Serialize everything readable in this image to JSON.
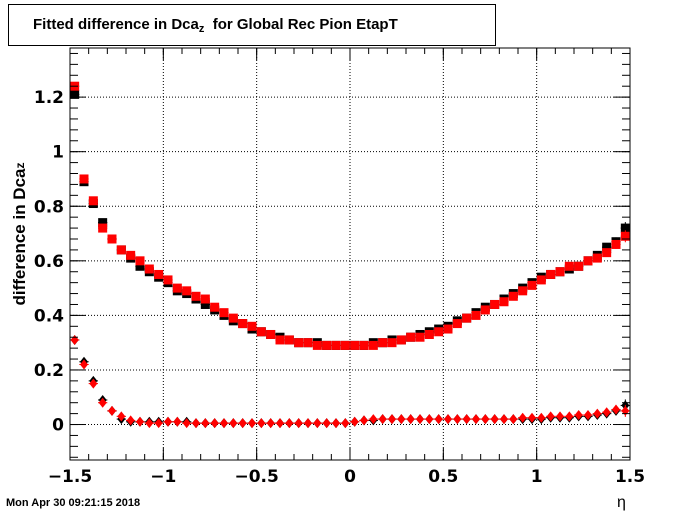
{
  "title": {
    "main": "Fitted difference in Dca",
    "sub": "z",
    "tail": "for Global Rec Pion EtapT"
  },
  "xlabel": "η",
  "ylabel": {
    "main": "difference in Dca",
    "sub": "z"
  },
  "timestamp": "Mon Apr 30 09:21:15 2018",
  "chart_data": {
    "type": "scatter",
    "xlim": [
      -1.5,
      1.5
    ],
    "ylim": [
      -0.13,
      1.38
    ],
    "grid": true,
    "xticks": [
      -1.5,
      -1,
      -0.5,
      0,
      0.5,
      1,
      1.5
    ],
    "xtick_labels": [
      "−1.5",
      "−1",
      "−0.5",
      "0",
      "0.5",
      "1",
      "1.5"
    ],
    "yticks": [
      0,
      0.2,
      0.4,
      0.6,
      0.8,
      1,
      1.2
    ],
    "ytick_labels": [
      "0",
      "0.2",
      "0.4",
      "0.6",
      "0.8",
      "1",
      "1.2"
    ],
    "x": [
      -1.475,
      -1.425,
      -1.375,
      -1.325,
      -1.275,
      -1.225,
      -1.175,
      -1.125,
      -1.075,
      -1.025,
      -0.975,
      -0.925,
      -0.875,
      -0.825,
      -0.775,
      -0.725,
      -0.675,
      -0.625,
      -0.575,
      -0.525,
      -0.475,
      -0.425,
      -0.375,
      -0.325,
      -0.275,
      -0.225,
      -0.175,
      -0.125,
      -0.075,
      -0.025,
      0.025,
      0.075,
      0.125,
      0.175,
      0.225,
      0.275,
      0.325,
      0.375,
      0.425,
      0.475,
      0.525,
      0.575,
      0.625,
      0.675,
      0.725,
      0.775,
      0.825,
      0.875,
      0.925,
      0.975,
      1.025,
      1.075,
      1.125,
      1.175,
      1.225,
      1.275,
      1.325,
      1.375,
      1.425,
      1.475
    ],
    "series": [
      {
        "marker": "square",
        "color": "#000000",
        "values": [
          1.21,
          0.89,
          0.81,
          0.74,
          0.68,
          0.64,
          0.61,
          0.58,
          0.56,
          0.54,
          0.52,
          0.49,
          0.48,
          0.46,
          0.44,
          0.42,
          0.4,
          0.38,
          0.37,
          0.35,
          0.34,
          0.33,
          0.32,
          0.31,
          0.3,
          0.3,
          0.3,
          0.29,
          0.29,
          0.29,
          0.29,
          0.29,
          0.3,
          0.3,
          0.31,
          0.31,
          0.32,
          0.33,
          0.34,
          0.35,
          0.36,
          0.38,
          0.39,
          0.41,
          0.43,
          0.44,
          0.46,
          0.48,
          0.5,
          0.52,
          0.54,
          0.55,
          0.56,
          0.57,
          0.58,
          0.6,
          0.62,
          0.65,
          0.67,
          0.72
        ],
        "errors": [
          0.012,
          0.01,
          0.008,
          0.007,
          0.006,
          0.006,
          0.005,
          0.005,
          0.005,
          0.005,
          0.004,
          0.004,
          0.004,
          0.004,
          0.004,
          0.004,
          0.004,
          0.004,
          0.004,
          0.004,
          0.004,
          0.004,
          0.004,
          0.004,
          0.004,
          0.004,
          0.004,
          0.004,
          0.004,
          0.004,
          0.004,
          0.004,
          0.004,
          0.004,
          0.004,
          0.004,
          0.004,
          0.004,
          0.004,
          0.004,
          0.004,
          0.004,
          0.004,
          0.004,
          0.004,
          0.004,
          0.004,
          0.004,
          0.004,
          0.004,
          0.005,
          0.005,
          0.005,
          0.006,
          0.006,
          0.007,
          0.009,
          0.012,
          0.016,
          0.022
        ]
      },
      {
        "marker": "square",
        "color": "#ff0000",
        "values": [
          1.24,
          0.9,
          0.82,
          0.72,
          0.68,
          0.64,
          0.62,
          0.6,
          0.57,
          0.55,
          0.53,
          0.5,
          0.49,
          0.47,
          0.46,
          0.43,
          0.41,
          0.39,
          0.37,
          0.36,
          0.34,
          0.33,
          0.31,
          0.31,
          0.3,
          0.3,
          0.29,
          0.29,
          0.29,
          0.29,
          0.29,
          0.29,
          0.29,
          0.3,
          0.3,
          0.31,
          0.32,
          0.32,
          0.33,
          0.34,
          0.35,
          0.37,
          0.39,
          0.4,
          0.42,
          0.44,
          0.45,
          0.47,
          0.49,
          0.51,
          0.53,
          0.55,
          0.56,
          0.58,
          0.58,
          0.6,
          0.61,
          0.63,
          0.66,
          0.69
        ],
        "errors": [
          0.012,
          0.01,
          0.008,
          0.007,
          0.006,
          0.006,
          0.005,
          0.005,
          0.005,
          0.005,
          0.004,
          0.004,
          0.004,
          0.004,
          0.004,
          0.004,
          0.004,
          0.004,
          0.004,
          0.004,
          0.004,
          0.004,
          0.004,
          0.004,
          0.004,
          0.004,
          0.004,
          0.004,
          0.004,
          0.004,
          0.004,
          0.004,
          0.004,
          0.004,
          0.004,
          0.004,
          0.004,
          0.004,
          0.004,
          0.004,
          0.004,
          0.004,
          0.004,
          0.004,
          0.004,
          0.004,
          0.004,
          0.004,
          0.004,
          0.004,
          0.005,
          0.005,
          0.005,
          0.006,
          0.006,
          0.007,
          0.009,
          0.012,
          0.016,
          0.022
        ]
      },
      {
        "marker": "diamond",
        "color": "#000000",
        "values": [
          0.31,
          0.23,
          0.16,
          0.09,
          0.05,
          0.02,
          0.01,
          0.01,
          0.01,
          0.01,
          0.01,
          0.01,
          0.01,
          0.005,
          0.005,
          0.005,
          0.005,
          0.005,
          0.005,
          0.005,
          0.005,
          0.005,
          0.005,
          0.005,
          0.005,
          0.005,
          0.005,
          0.005,
          0.005,
          0.005,
          0.01,
          0.015,
          0.015,
          0.02,
          0.02,
          0.02,
          0.02,
          0.02,
          0.02,
          0.02,
          0.02,
          0.02,
          0.02,
          0.02,
          0.02,
          0.02,
          0.02,
          0.02,
          0.02,
          0.02,
          0.02,
          0.025,
          0.025,
          0.025,
          0.03,
          0.03,
          0.035,
          0.04,
          0.05,
          0.07
        ],
        "errors": [
          0.01,
          0.009,
          0.008,
          0.006,
          0.005,
          0.004,
          0.004,
          0.004,
          0.004,
          0.004,
          0.004,
          0.004,
          0.004,
          0.004,
          0.004,
          0.004,
          0.004,
          0.004,
          0.004,
          0.004,
          0.004,
          0.004,
          0.004,
          0.004,
          0.004,
          0.004,
          0.004,
          0.004,
          0.004,
          0.004,
          0.004,
          0.004,
          0.004,
          0.004,
          0.004,
          0.004,
          0.004,
          0.004,
          0.004,
          0.004,
          0.004,
          0.004,
          0.004,
          0.004,
          0.004,
          0.004,
          0.004,
          0.004,
          0.004,
          0.004,
          0.005,
          0.005,
          0.005,
          0.006,
          0.006,
          0.007,
          0.008,
          0.01,
          0.015,
          0.022
        ]
      },
      {
        "marker": "diamond",
        "color": "#ff0000",
        "values": [
          0.31,
          0.22,
          0.15,
          0.08,
          0.05,
          0.03,
          0.015,
          0.01,
          0.005,
          0.005,
          0.01,
          0.01,
          0.005,
          0.005,
          0.005,
          0.005,
          0.005,
          0.005,
          0.005,
          0.005,
          0.005,
          0.005,
          0.005,
          0.005,
          0.005,
          0.005,
          0.005,
          0.005,
          0.005,
          0.005,
          0.01,
          0.015,
          0.02,
          0.02,
          0.02,
          0.02,
          0.02,
          0.02,
          0.02,
          0.02,
          0.02,
          0.02,
          0.02,
          0.02,
          0.02,
          0.02,
          0.02,
          0.02,
          0.025,
          0.025,
          0.025,
          0.03,
          0.03,
          0.03,
          0.035,
          0.035,
          0.04,
          0.045,
          0.055,
          0.05
        ],
        "errors": [
          0.01,
          0.009,
          0.008,
          0.006,
          0.005,
          0.004,
          0.004,
          0.004,
          0.004,
          0.004,
          0.004,
          0.004,
          0.004,
          0.004,
          0.004,
          0.004,
          0.004,
          0.004,
          0.004,
          0.004,
          0.004,
          0.004,
          0.004,
          0.004,
          0.004,
          0.004,
          0.004,
          0.004,
          0.004,
          0.004,
          0.004,
          0.004,
          0.004,
          0.004,
          0.004,
          0.004,
          0.004,
          0.004,
          0.004,
          0.004,
          0.004,
          0.004,
          0.004,
          0.004,
          0.004,
          0.004,
          0.004,
          0.004,
          0.004,
          0.004,
          0.005,
          0.005,
          0.005,
          0.006,
          0.006,
          0.007,
          0.008,
          0.01,
          0.015,
          0.022
        ]
      }
    ]
  }
}
